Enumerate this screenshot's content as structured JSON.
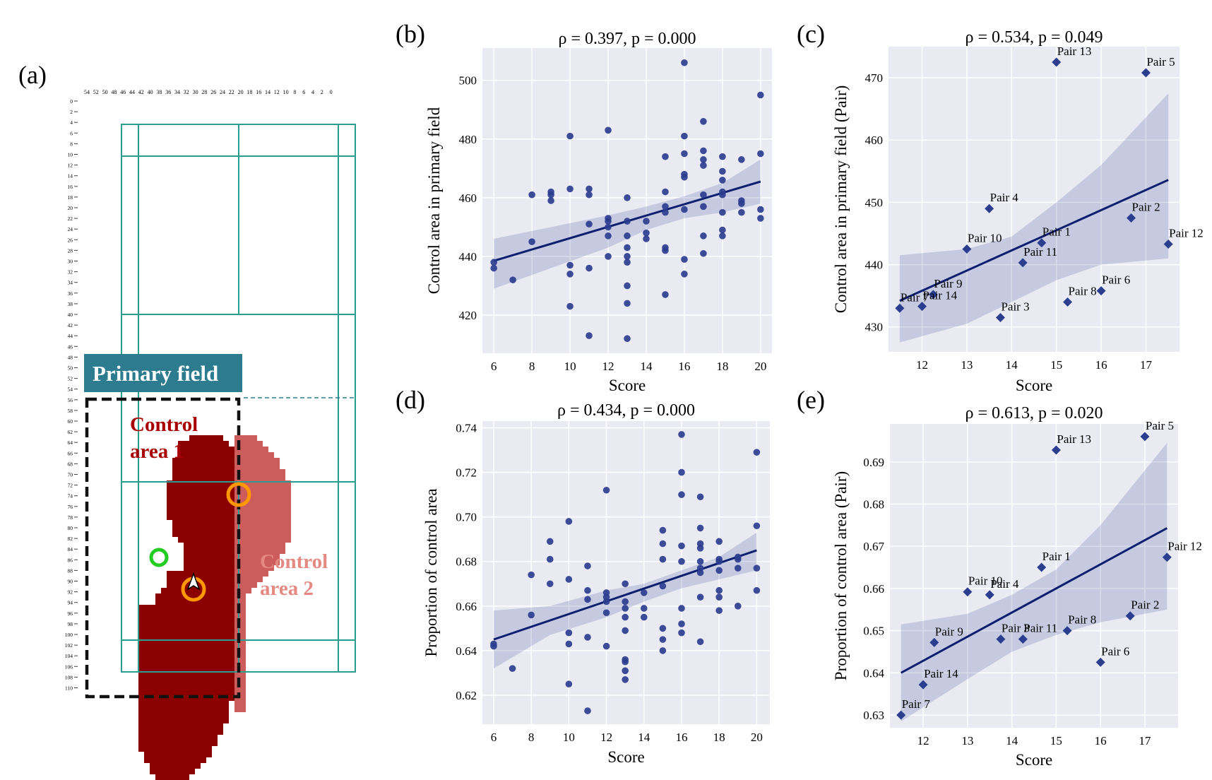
{
  "panel_a": {
    "label": "(a)",
    "x_ticks": [
      "54",
      "52",
      "50",
      "48",
      "46",
      "44",
      "42",
      "40",
      "38",
      "36",
      "34",
      "32",
      "30",
      "28",
      "26",
      "24",
      "22",
      "20",
      "18",
      "16",
      "14",
      "12",
      "10",
      "8",
      "6",
      "4",
      "2",
      "0"
    ],
    "y_ticks": [
      "0",
      "2",
      "4",
      "6",
      "8",
      "10",
      "12",
      "14",
      "16",
      "18",
      "20",
      "22",
      "24",
      "26",
      "28",
      "30",
      "32",
      "34",
      "36",
      "38",
      "40",
      "42",
      "44",
      "46",
      "48",
      "50",
      "52",
      "54",
      "56",
      "58",
      "60",
      "62",
      "64",
      "66",
      "68",
      "70",
      "72",
      "74",
      "76",
      "78",
      "80",
      "82",
      "84",
      "86",
      "88",
      "90",
      "92",
      "94",
      "96",
      "98",
      "100",
      "102",
      "104",
      "106",
      "108",
      "110"
    ],
    "primary_field_label": "Primary field",
    "control_area_1_line1": "Control",
    "control_area_1_line2": "area 1",
    "control_area_2_line1": "Control",
    "control_area_2_line2": "area 2",
    "colors": {
      "court": "#2a9d8f",
      "area1": "#8b0000",
      "area2": "#cd5c5c",
      "banner": "#2c7b8f",
      "ring_orange": "#ff9800",
      "ring_green": "#22cc22"
    }
  },
  "chart_data": [
    {
      "id": "b",
      "label": "(b)",
      "type": "scatter",
      "marker": "circle",
      "title": "ρ = 0.397, p = 0.000",
      "xlabel": "Score",
      "ylabel": "Control area in primary field",
      "xlim": [
        5.4,
        20.6
      ],
      "ylim": [
        407,
        511
      ],
      "xticks": [
        6,
        8,
        10,
        12,
        14,
        16,
        18,
        20
      ],
      "yticks": [
        420,
        440,
        460,
        480,
        500
      ],
      "points": [
        [
          6,
          438
        ],
        [
          6,
          436
        ],
        [
          7,
          432
        ],
        [
          8,
          461
        ],
        [
          8,
          445
        ],
        [
          9,
          462
        ],
        [
          9,
          461
        ],
        [
          9,
          459
        ],
        [
          10,
          481
        ],
        [
          10,
          463
        ],
        [
          10,
          437
        ],
        [
          10,
          434
        ],
        [
          10,
          423
        ],
        [
          11,
          463
        ],
        [
          11,
          461
        ],
        [
          11,
          451
        ],
        [
          11,
          436
        ],
        [
          11,
          413
        ],
        [
          12,
          483
        ],
        [
          12,
          453
        ],
        [
          12,
          452
        ],
        [
          12,
          450
        ],
        [
          12,
          447
        ],
        [
          12,
          440
        ],
        [
          13,
          460
        ],
        [
          13,
          452
        ],
        [
          13,
          447
        ],
        [
          13,
          443
        ],
        [
          13,
          440
        ],
        [
          13,
          438
        ],
        [
          13,
          430
        ],
        [
          13,
          424
        ],
        [
          13,
          412
        ],
        [
          14,
          452
        ],
        [
          14,
          448
        ],
        [
          14,
          446
        ],
        [
          15,
          474
        ],
        [
          15,
          462
        ],
        [
          15,
          457
        ],
        [
          15,
          455
        ],
        [
          15,
          443
        ],
        [
          15,
          442
        ],
        [
          15,
          427
        ],
        [
          16,
          506
        ],
        [
          16,
          481
        ],
        [
          16,
          475
        ],
        [
          16,
          468
        ],
        [
          16,
          467
        ],
        [
          16,
          456
        ],
        [
          16,
          439
        ],
        [
          16,
          434
        ],
        [
          17,
          486
        ],
        [
          17,
          476
        ],
        [
          17,
          473
        ],
        [
          17,
          471
        ],
        [
          17,
          461
        ],
        [
          17,
          457
        ],
        [
          17,
          447
        ],
        [
          17,
          441
        ],
        [
          18,
          474
        ],
        [
          18,
          469
        ],
        [
          18,
          466
        ],
        [
          18,
          462
        ],
        [
          18,
          461
        ],
        [
          18,
          455
        ],
        [
          18,
          449
        ],
        [
          18,
          447
        ],
        [
          19,
          473
        ],
        [
          19,
          459
        ],
        [
          19,
          458
        ],
        [
          19,
          455
        ],
        [
          20,
          495
        ],
        [
          20,
          475
        ],
        [
          20,
          456
        ],
        [
          20,
          453
        ]
      ],
      "fit": {
        "x": [
          6,
          20
        ],
        "y": [
          438.5,
          465.5
        ]
      },
      "ci_upper": [
        [
          6,
          446
        ],
        [
          9,
          450
        ],
        [
          12,
          454
        ],
        [
          14,
          457
        ],
        [
          16,
          460.5
        ],
        [
          18,
          465
        ],
        [
          20,
          473
        ]
      ],
      "ci_lower": [
        [
          20,
          458
        ],
        [
          18,
          455
        ],
        [
          16,
          453
        ],
        [
          14,
          449
        ],
        [
          12,
          443
        ],
        [
          9,
          436
        ],
        [
          6,
          429
        ]
      ]
    },
    {
      "id": "c",
      "label": "(c)",
      "type": "scatter",
      "marker": "diamond",
      "title": "ρ = 0.534, p = 0.049",
      "xlabel": "Score",
      "ylabel": "Control area in primary field (Pair)",
      "xlim": [
        11.25,
        17.75
      ],
      "ylim": [
        426,
        475
      ],
      "xticks": [
        12,
        13,
        14,
        15,
        16,
        17
      ],
      "yticks": [
        430,
        440,
        450,
        460,
        470
      ],
      "points": [
        [
          14.67,
          443.5
        ],
        [
          16.67,
          447.5
        ],
        [
          13.75,
          431.5
        ],
        [
          13.5,
          449
        ],
        [
          17,
          470.8
        ],
        [
          16,
          435.8
        ],
        [
          11.5,
          433
        ],
        [
          15.25,
          434
        ],
        [
          12.25,
          435.2
        ],
        [
          13,
          442.5
        ],
        [
          14.25,
          440.3
        ],
        [
          17.5,
          443.3
        ],
        [
          15,
          472.5
        ],
        [
          12,
          433.3
        ]
      ],
      "point_labels": [
        "Pair 1",
        "Pair 2",
        "Pair 3",
        "Pair 4",
        "Pair 5",
        "Pair 6",
        "Pair 7",
        "Pair 8",
        "Pair 9",
        "Pair 10",
        "Pair 11",
        "Pair 12",
        "Pair 13",
        "Pair 14"
      ],
      "fit": {
        "x": [
          11.5,
          17.5
        ],
        "y": [
          434.2,
          453.6
        ]
      },
      "ci_upper": [
        [
          11.5,
          441.5
        ],
        [
          13,
          442.5
        ],
        [
          14,
          444.5
        ],
        [
          15,
          450
        ],
        [
          16,
          456
        ],
        [
          17.5,
          467.5
        ]
      ],
      "ci_lower": [
        [
          17.5,
          441
        ],
        [
          16,
          440
        ],
        [
          15,
          437.5
        ],
        [
          14,
          434
        ],
        [
          13,
          430.5
        ],
        [
          11.5,
          427.5
        ]
      ]
    },
    {
      "id": "d",
      "label": "(d)",
      "type": "scatter",
      "marker": "circle",
      "title": "ρ = 0.434, p = 0.000",
      "xlabel": "Score",
      "ylabel": "Proportion of control area",
      "xlim": [
        5.4,
        20.7
      ],
      "ylim": [
        0.607,
        0.743
      ],
      "xticks": [
        6,
        8,
        10,
        12,
        14,
        16,
        18,
        20
      ],
      "yticks": [
        0.62,
        0.64,
        0.66,
        0.68,
        0.7,
        0.72,
        0.74
      ],
      "points": [
        [
          6,
          0.643
        ],
        [
          6,
          0.642
        ],
        [
          7,
          0.632
        ],
        [
          8,
          0.674
        ],
        [
          8,
          0.656
        ],
        [
          9,
          0.689
        ],
        [
          9,
          0.681
        ],
        [
          9,
          0.67
        ],
        [
          10,
          0.698
        ],
        [
          10,
          0.672
        ],
        [
          10,
          0.648
        ],
        [
          10,
          0.643
        ],
        [
          10,
          0.625
        ],
        [
          11,
          0.678
        ],
        [
          11,
          0.667
        ],
        [
          11,
          0.663
        ],
        [
          11,
          0.646
        ],
        [
          11,
          0.613
        ],
        [
          12,
          0.712
        ],
        [
          12,
          0.666
        ],
        [
          12,
          0.664
        ],
        [
          12,
          0.662
        ],
        [
          12,
          0.657
        ],
        [
          12,
          0.642
        ],
        [
          13,
          0.67
        ],
        [
          13,
          0.662
        ],
        [
          13,
          0.659
        ],
        [
          13,
          0.655
        ],
        [
          13,
          0.649
        ],
        [
          13,
          0.636
        ],
        [
          13,
          0.635
        ],
        [
          13,
          0.631
        ],
        [
          13,
          0.627
        ],
        [
          14,
          0.666
        ],
        [
          14,
          0.659
        ],
        [
          14,
          0.655
        ],
        [
          15,
          0.694
        ],
        [
          15,
          0.688
        ],
        [
          15,
          0.681
        ],
        [
          15,
          0.669
        ],
        [
          15,
          0.65
        ],
        [
          15,
          0.645
        ],
        [
          15,
          0.64
        ],
        [
          16,
          0.737
        ],
        [
          16,
          0.72
        ],
        [
          16,
          0.71
        ],
        [
          16,
          0.687
        ],
        [
          16,
          0.68
        ],
        [
          16,
          0.659
        ],
        [
          16,
          0.652
        ],
        [
          16,
          0.648
        ],
        [
          17,
          0.709
        ],
        [
          17,
          0.695
        ],
        [
          17,
          0.688
        ],
        [
          17,
          0.686
        ],
        [
          17,
          0.68
        ],
        [
          17,
          0.677
        ],
        [
          17,
          0.675
        ],
        [
          17,
          0.664
        ],
        [
          17,
          0.644
        ],
        [
          18,
          0.689
        ],
        [
          18,
          0.681
        ],
        [
          18,
          0.68
        ],
        [
          18,
          0.676
        ],
        [
          18,
          0.667
        ],
        [
          18,
          0.664
        ],
        [
          18,
          0.658
        ],
        [
          19,
          0.682
        ],
        [
          19,
          0.681
        ],
        [
          19,
          0.677
        ],
        [
          19,
          0.66
        ],
        [
          20,
          0.729
        ],
        [
          20,
          0.696
        ],
        [
          20,
          0.677
        ],
        [
          20,
          0.667
        ]
      ],
      "fit": {
        "x": [
          6,
          20
        ],
        "y": [
          0.645,
          0.685
        ]
      },
      "ci_upper": [
        [
          6,
          0.658
        ],
        [
          9,
          0.66
        ],
        [
          12,
          0.667
        ],
        [
          14,
          0.67
        ],
        [
          16,
          0.676
        ],
        [
          18,
          0.682
        ],
        [
          20,
          0.693
        ]
      ],
      "ci_lower": [
        [
          20,
          0.676
        ],
        [
          18,
          0.672
        ],
        [
          16,
          0.668
        ],
        [
          14,
          0.662
        ],
        [
          12,
          0.655
        ],
        [
          9,
          0.647
        ],
        [
          6,
          0.632
        ]
      ]
    },
    {
      "id": "e",
      "label": "(e)",
      "type": "scatter",
      "marker": "diamond",
      "title": "ρ = 0.613, p = 0.020",
      "xlabel": "Score",
      "ylabel": "Proportion of control area (Pair)",
      "xlim": [
        11.25,
        17.75
      ],
      "ylim": [
        0.627,
        0.699
      ],
      "xticks": [
        12,
        13,
        14,
        15,
        16,
        17
      ],
      "yticks": [
        0.63,
        0.64,
        0.65,
        0.66,
        0.67,
        0.68,
        0.69
      ],
      "points": [
        [
          14.67,
          0.665
        ],
        [
          16.67,
          0.6535
        ],
        [
          13.75,
          0.648
        ],
        [
          13.5,
          0.6585
        ],
        [
          17,
          0.696
        ],
        [
          16,
          0.6425
        ],
        [
          11.5,
          0.63
        ],
        [
          15.25,
          0.65
        ],
        [
          12.25,
          0.6472
        ],
        [
          13,
          0.6592
        ],
        [
          14.25,
          0.648
        ],
        [
          17.5,
          0.6674
        ],
        [
          15,
          0.6928
        ],
        [
          12,
          0.6372
        ]
      ],
      "point_labels": [
        "Pair 1",
        "Pair 2",
        "Pair 3",
        "Pair 4",
        "Pair 5",
        "Pair 6",
        "Pair 7",
        "Pair 8",
        "Pair 9",
        "Pair 10",
        "Pair 11",
        "Pair 12",
        "Pair 13",
        "Pair 14"
      ],
      "fit": {
        "x": [
          11.5,
          17.5
        ],
        "y": [
          0.64,
          0.6743
        ]
      },
      "ci_upper": [
        [
          11.5,
          0.6515
        ],
        [
          13,
          0.654
        ],
        [
          14,
          0.6585
        ],
        [
          15,
          0.6645
        ],
        [
          16,
          0.675
        ],
        [
          17.5,
          0.6945
        ]
      ],
      "ci_lower": [
        [
          17.5,
          0.655
        ],
        [
          16,
          0.652
        ],
        [
          15,
          0.649
        ],
        [
          14,
          0.645
        ],
        [
          13,
          0.6385
        ],
        [
          11.5,
          0.6285
        ]
      ]
    }
  ]
}
